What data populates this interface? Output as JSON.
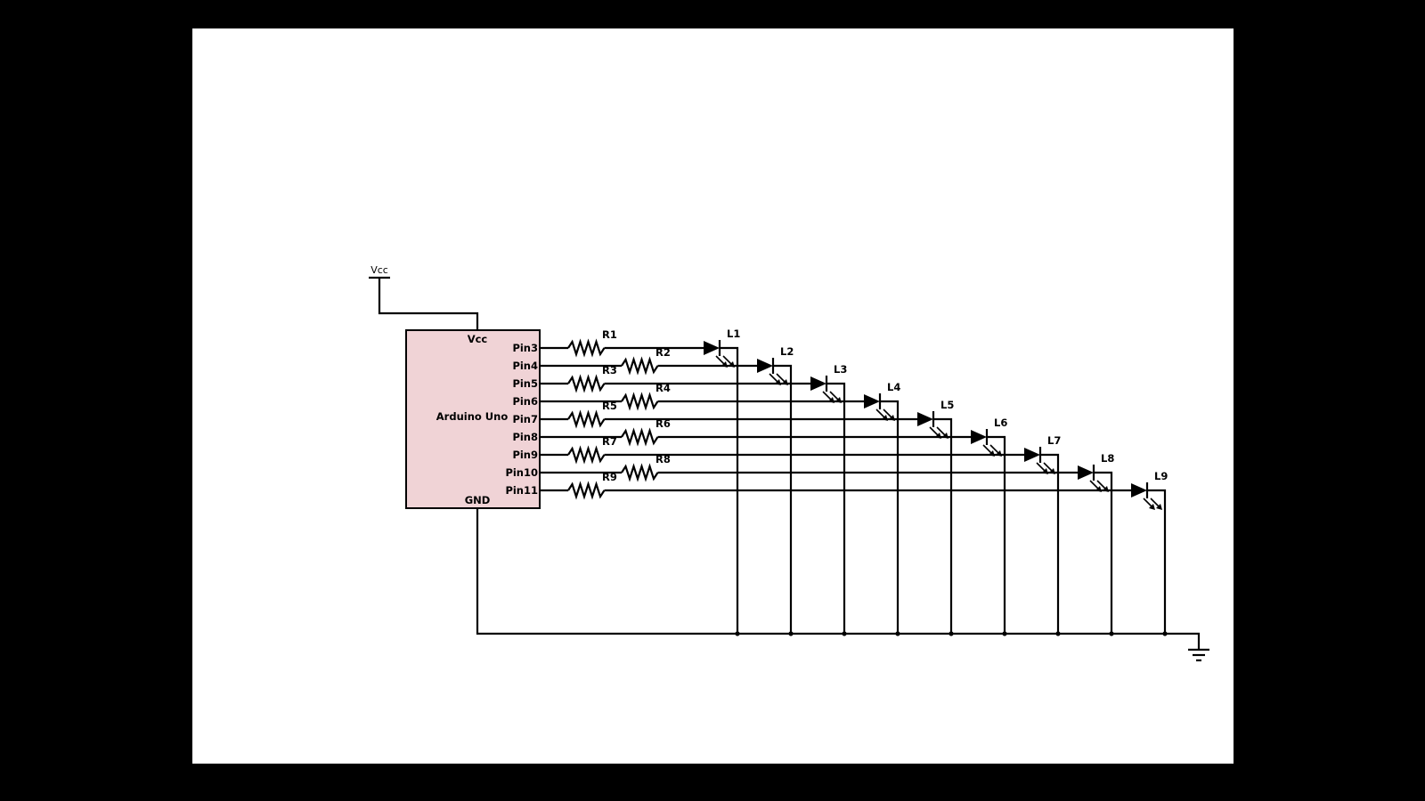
{
  "power": {
    "vcc_label": "Vcc"
  },
  "chip": {
    "name": "Arduino Uno",
    "vcc_pin": "Vcc",
    "gnd_pin": "GND",
    "fill_color": "#f0d3d6",
    "pins": [
      "Pin3",
      "Pin4",
      "Pin5",
      "Pin6",
      "Pin7",
      "Pin8",
      "Pin9",
      "Pin10",
      "Pin11"
    ]
  },
  "resistors": [
    "R1",
    "R2",
    "R3",
    "R4",
    "R5",
    "R6",
    "R7",
    "R8",
    "R9"
  ],
  "leds": [
    "L1",
    "L2",
    "L3",
    "L4",
    "L5",
    "L6",
    "L7",
    "L8",
    "L9"
  ],
  "ground": {
    "symbol": "ground-icon"
  }
}
